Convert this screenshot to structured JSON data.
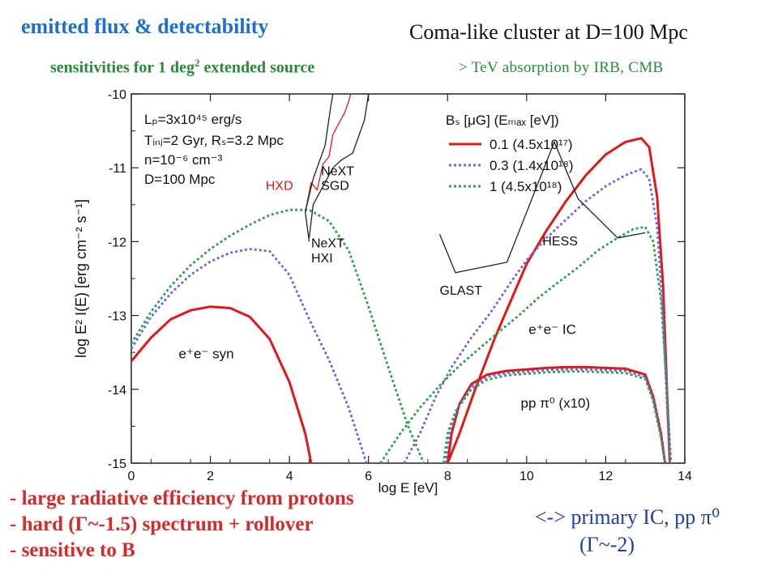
{
  "header": {
    "title_left": "emitted flux & detectability",
    "subtitle_left_pre": "sensitivities for 1 deg",
    "subtitle_left_sup": "2",
    "subtitle_left_post": " extended source",
    "title_right": "Coma-like cluster at D=100 Mpc",
    "subtitle_right": "> TeV absorption by IRB, CMB"
  },
  "bullets": [
    "- large radiative efficiency from protons",
    "- hard (Γ~-1.5) spectrum + rollover",
    "- sensitive to B"
  ],
  "note": {
    "line1": "<-> primary IC, pp π⁰",
    "line2": "(Γ~-2)"
  },
  "chart_data": {
    "type": "line",
    "xlabel": "log E [eV]",
    "ylabel": "log E² I(E) [erg cm⁻² s⁻¹]",
    "xlim": [
      0,
      14
    ],
    "ylim": [
      -15,
      -10
    ],
    "xticks": [
      0,
      2,
      4,
      6,
      8,
      10,
      12,
      14
    ],
    "yticks": [
      -15,
      -14,
      -13,
      -12,
      -11,
      -10
    ],
    "params": [
      "Lₚ=3x10⁴⁵ erg/s",
      "Tᵢₙⱼ=2 Gyr, Rₛ=3.2 Mpc",
      "n=10⁻⁶ cm⁻³",
      "D=100 Mpc"
    ],
    "legend_title": "Bₛ [μG] (Eₘₐₓ [eV])",
    "legend_position": "top-right",
    "annotations": {
      "syn": "e⁺e⁻ syn",
      "ic": "e⁺e⁻ IC",
      "pp": "pp π⁰ (x10)"
    },
    "series": [
      {
        "name": "0.1 (4.5x10¹⁷)",
        "color": "#e01818",
        "dash": "solid",
        "points": [
          [
            0,
            -13.62
          ],
          [
            0.5,
            -13.3
          ],
          [
            1,
            -13.05
          ],
          [
            1.5,
            -12.93
          ],
          [
            2,
            -12.88
          ],
          [
            2.5,
            -12.9
          ],
          [
            3,
            -13.02
          ],
          [
            3.5,
            -13.32
          ],
          [
            4,
            -13.9
          ],
          [
            4.4,
            -14.6
          ],
          [
            4.55,
            -15.0
          ]
        ]
      },
      {
        "name": "0.3 (1.4x10¹⁸)",
        "color": "#6a66e8",
        "dash": "dotted",
        "points": [
          [
            0,
            -13.45
          ],
          [
            0.5,
            -13.02
          ],
          [
            1,
            -12.7
          ],
          [
            1.5,
            -12.45
          ],
          [
            2,
            -12.27
          ],
          [
            2.5,
            -12.15
          ],
          [
            3,
            -12.1
          ],
          [
            3.5,
            -12.13
          ],
          [
            4,
            -12.45
          ],
          [
            4.5,
            -13.05
          ],
          [
            5,
            -13.6
          ],
          [
            5.5,
            -14.25
          ],
          [
            5.95,
            -15.0
          ]
        ]
      },
      {
        "name": "1 (4.5x10¹⁸)",
        "color": "#2aa44a",
        "dash": "dotted",
        "points": [
          [
            0,
            -13.38
          ],
          [
            0.5,
            -12.95
          ],
          [
            1,
            -12.6
          ],
          [
            1.5,
            -12.32
          ],
          [
            2,
            -12.1
          ],
          [
            2.5,
            -11.92
          ],
          [
            3,
            -11.77
          ],
          [
            3.5,
            -11.64
          ],
          [
            4,
            -11.57
          ],
          [
            4.5,
            -11.57
          ],
          [
            5,
            -11.72
          ],
          [
            5.5,
            -12.12
          ],
          [
            6,
            -12.88
          ],
          [
            6.5,
            -13.7
          ],
          [
            7,
            -14.5
          ],
          [
            7.4,
            -15.0
          ]
        ]
      },
      {
        "name": "IC red",
        "color": "#e01818",
        "dash": "solid",
        "points": [
          [
            8,
            -15.0
          ],
          [
            8.3,
            -14.6
          ],
          [
            8.7,
            -14.0
          ],
          [
            9.2,
            -13.3
          ],
          [
            9.6,
            -12.8
          ],
          [
            10,
            -12.3
          ],
          [
            10.5,
            -11.85
          ],
          [
            11,
            -11.45
          ],
          [
            11.5,
            -11.1
          ],
          [
            12,
            -10.82
          ],
          [
            12.5,
            -10.65
          ],
          [
            12.9,
            -10.6
          ],
          [
            13.1,
            -10.72
          ],
          [
            13.3,
            -11.4
          ],
          [
            13.45,
            -12.6
          ],
          [
            13.55,
            -14.0
          ],
          [
            13.62,
            -15.0
          ]
        ]
      },
      {
        "name": "IC blue",
        "color": "#6a66e8",
        "dash": "dotted",
        "points": [
          [
            6.9,
            -15.0
          ],
          [
            7.3,
            -14.6
          ],
          [
            7.7,
            -14.1
          ],
          [
            8.1,
            -13.7
          ],
          [
            8.6,
            -13.3
          ],
          [
            9.1,
            -12.95
          ],
          [
            9.6,
            -12.55
          ],
          [
            10,
            -12.25
          ],
          [
            10.5,
            -11.95
          ],
          [
            11,
            -11.7
          ],
          [
            11.5,
            -11.45
          ],
          [
            12,
            -11.25
          ],
          [
            12.5,
            -11.1
          ],
          [
            12.9,
            -11.02
          ],
          [
            13.1,
            -11.15
          ],
          [
            13.3,
            -11.8
          ],
          [
            13.45,
            -13.0
          ],
          [
            13.55,
            -14.2
          ],
          [
            13.62,
            -15.0
          ]
        ]
      },
      {
        "name": "IC green",
        "color": "#2aa44a",
        "dash": "dotted",
        "points": [
          [
            6.3,
            -15.0
          ],
          [
            6.8,
            -14.6
          ],
          [
            7.3,
            -14.25
          ],
          [
            7.8,
            -13.95
          ],
          [
            8.3,
            -13.68
          ],
          [
            8.8,
            -13.45
          ],
          [
            9.3,
            -13.22
          ],
          [
            9.8,
            -13.0
          ],
          [
            10.3,
            -12.76
          ],
          [
            10.8,
            -12.55
          ],
          [
            11.3,
            -12.35
          ],
          [
            11.8,
            -12.12
          ],
          [
            12.3,
            -11.95
          ],
          [
            12.7,
            -11.83
          ],
          [
            13.0,
            -11.8
          ],
          [
            13.2,
            -12.0
          ],
          [
            13.4,
            -12.8
          ],
          [
            13.55,
            -14.0
          ],
          [
            13.65,
            -15.0
          ]
        ]
      },
      {
        "name": "pp red",
        "color": "#e01818",
        "dash": "solid",
        "points": [
          [
            8,
            -15.0
          ],
          [
            8.1,
            -14.6
          ],
          [
            8.3,
            -14.2
          ],
          [
            8.6,
            -13.93
          ],
          [
            9.0,
            -13.8
          ],
          [
            9.5,
            -13.75
          ],
          [
            10,
            -13.73
          ],
          [
            10.5,
            -13.71
          ],
          [
            11,
            -13.7
          ],
          [
            11.5,
            -13.7
          ],
          [
            12,
            -13.71
          ],
          [
            12.5,
            -13.72
          ],
          [
            13.0,
            -13.8
          ],
          [
            13.2,
            -14.1
          ],
          [
            13.4,
            -14.6
          ],
          [
            13.5,
            -15.0
          ]
        ]
      },
      {
        "name": "pp blue",
        "color": "#6a66e8",
        "dash": "dotted",
        "points": [
          [
            7.95,
            -15.0
          ],
          [
            8.05,
            -14.6
          ],
          [
            8.25,
            -14.25
          ],
          [
            8.6,
            -13.96
          ],
          [
            9.0,
            -13.83
          ],
          [
            9.5,
            -13.78
          ],
          [
            10,
            -13.76
          ],
          [
            10.5,
            -13.74
          ],
          [
            11,
            -13.73
          ],
          [
            11.5,
            -13.73
          ],
          [
            12,
            -13.74
          ],
          [
            12.5,
            -13.75
          ],
          [
            13.0,
            -13.83
          ],
          [
            13.2,
            -14.13
          ],
          [
            13.4,
            -14.63
          ],
          [
            13.5,
            -15.0
          ]
        ]
      },
      {
        "name": "pp green",
        "color": "#2aa44a",
        "dash": "dotted",
        "points": [
          [
            7.9,
            -15.0
          ],
          [
            8.0,
            -14.6
          ],
          [
            8.2,
            -14.3
          ],
          [
            8.6,
            -14.0
          ],
          [
            9.0,
            -13.87
          ],
          [
            9.5,
            -13.81
          ],
          [
            10,
            -13.79
          ],
          [
            10.5,
            -13.77
          ],
          [
            11,
            -13.76
          ],
          [
            11.5,
            -13.76
          ],
          [
            12,
            -13.77
          ],
          [
            12.5,
            -13.78
          ],
          [
            13.0,
            -13.86
          ],
          [
            13.2,
            -14.16
          ],
          [
            13.4,
            -14.66
          ],
          [
            13.5,
            -15.0
          ]
        ]
      }
    ],
    "instruments": [
      {
        "name": "HXD",
        "color": "#e01818",
        "points": [
          [
            4.4,
            -11.6
          ],
          [
            4.55,
            -11.2
          ],
          [
            4.7,
            -11.3
          ],
          [
            4.85,
            -10.95
          ],
          [
            5.0,
            -10.85
          ],
          [
            5.1,
            -10.55
          ],
          [
            5.25,
            -10.4
          ],
          [
            5.4,
            -10.25
          ],
          [
            5.5,
            -10.1
          ],
          [
            5.55,
            -10.0
          ]
        ]
      },
      {
        "name": "NeXT SGD",
        "color": "#222222",
        "points": [
          [
            4.5,
            -11.95
          ],
          [
            4.6,
            -11.5
          ],
          [
            4.8,
            -11.3
          ],
          [
            5.1,
            -11.0
          ],
          [
            5.3,
            -10.9
          ],
          [
            5.6,
            -10.8
          ],
          [
            5.9,
            -10.35
          ],
          [
            6.0,
            -10.0
          ]
        ]
      },
      {
        "name": "NeXT HXI",
        "color": "#222222",
        "points": [
          [
            4.5,
            -12.0
          ],
          [
            4.4,
            -11.6
          ],
          [
            4.6,
            -11.15
          ],
          [
            4.9,
            -10.7
          ],
          [
            5.05,
            -10.15
          ],
          [
            5.1,
            -10.0
          ]
        ]
      },
      {
        "name": "GLAST",
        "color": "#222222",
        "points": [
          [
            7.8,
            -11.9
          ],
          [
            8.2,
            -12.42
          ],
          [
            9.5,
            -12.28
          ],
          [
            10.7,
            -10.65
          ],
          [
            11.3,
            -11.42
          ],
          [
            12.3,
            -11.95
          ],
          [
            13.0,
            -11.88
          ]
        ]
      }
    ],
    "instrument_labels": [
      "HXD",
      "NeXT",
      "SGD",
      "NeXT",
      "HXI",
      "GLAST",
      "HESS"
    ]
  }
}
